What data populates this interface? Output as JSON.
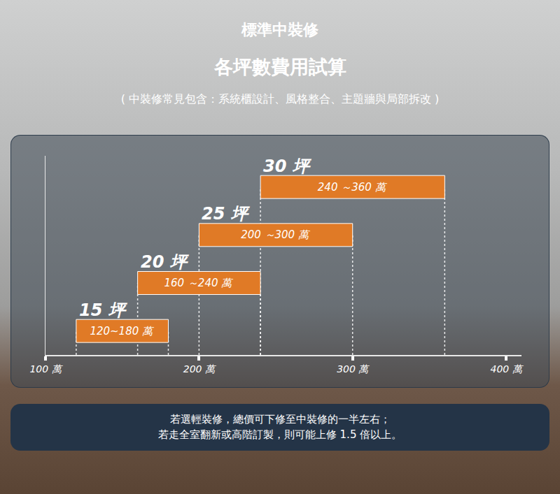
{
  "title": "標準中裝修",
  "subtitle": "各坪數費用試算",
  "description": "( 中裝修常見包含：系統櫃設計、風格整合、主題牆與局部拆改 )",
  "footnote": [
    "若選輕裝修，總價可下修至中裝修的一半左右；",
    "若走全室翻新或高階訂製，則可能上修 1.5 倍以上。"
  ],
  "chart_data": {
    "type": "bar",
    "orientation": "horizontal",
    "categories": [
      "15 坪",
      "20 坪",
      "25 坪",
      "30 坪"
    ],
    "low": [
      120,
      160,
      200,
      240
    ],
    "high": [
      180,
      240,
      300,
      360
    ],
    "value_labels": [
      "120~180 萬",
      "160 ～240 萬",
      "200 ～300 萬",
      "240 ～360 萬"
    ],
    "data_labels": true,
    "color": "#e07a26",
    "xlim": [
      100,
      410
    ],
    "xticks": [
      {
        "value": 100,
        "label": "100 萬"
      },
      {
        "value": 200,
        "label": "200 萬"
      },
      {
        "value": 300,
        "label": "300 萬"
      },
      {
        "value": 400,
        "label": "400 萬"
      }
    ],
    "grid": false,
    "tick_labels": "x"
  }
}
